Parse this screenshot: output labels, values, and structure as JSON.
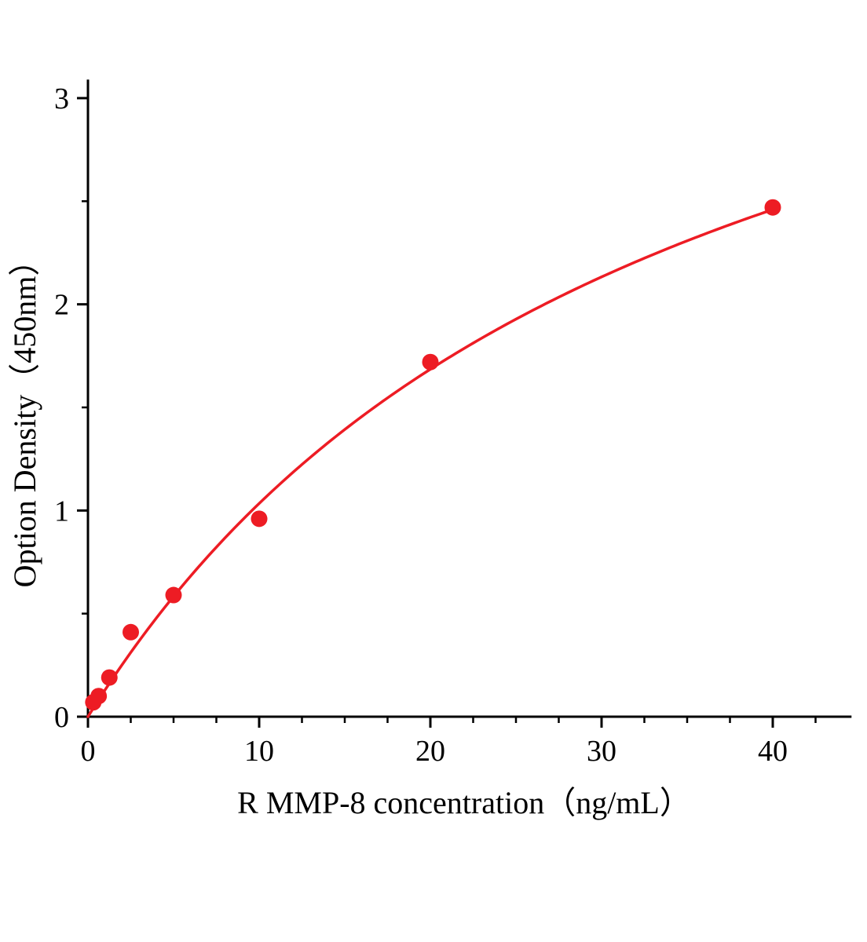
{
  "chart_data": {
    "type": "scatter",
    "title": "",
    "xlabel": "R MMP-8  concentration（ng/mL）",
    "ylabel": "Option Density（450nm）",
    "x": [
      0.313,
      0.625,
      1.25,
      2.5,
      5,
      10,
      20,
      40
    ],
    "y": [
      0.07,
      0.1,
      0.19,
      0.41,
      0.59,
      0.96,
      1.72,
      2.47
    ],
    "xlim": [
      0,
      44.6
    ],
    "ylim": [
      0,
      3.09
    ],
    "xticks": [
      0,
      10,
      20,
      30,
      40
    ],
    "yticks": [
      0,
      1,
      2,
      3
    ],
    "x_minor_step": 2.5,
    "y_minor_step": 0.5,
    "marker_color": "#ed1c24",
    "line_color": "#ed1c24",
    "axis_color": "#000000",
    "fit": {
      "type": "y = a*x/(b+x)",
      "a": 4.55,
      "b": 34
    },
    "grid": false,
    "legend": "none"
  }
}
